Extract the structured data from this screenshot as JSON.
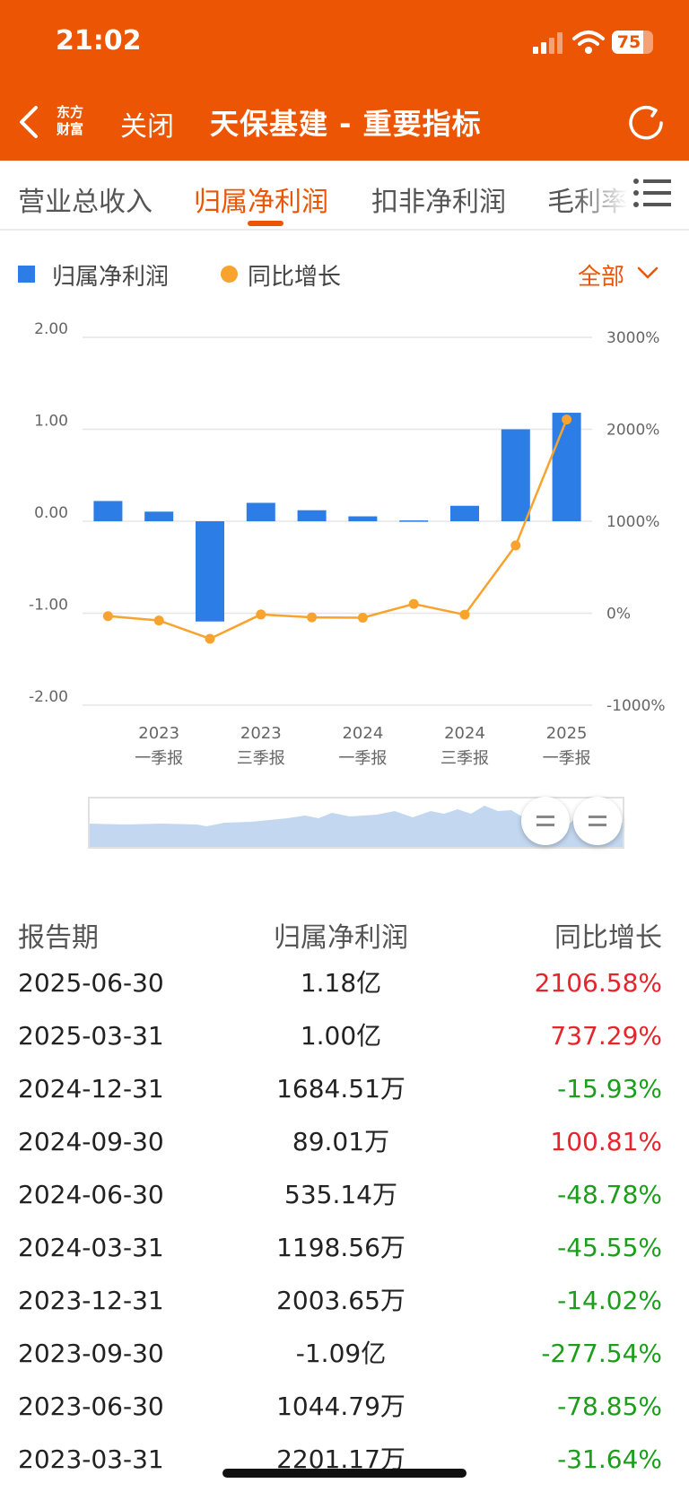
{
  "status_bar": {
    "time": "21:02",
    "battery": "75",
    "battery_level": 0.75
  },
  "header": {
    "logo_line1": "东方",
    "logo_line2": "财富",
    "close_label": "关闭",
    "title": "天保基建 - 重要指标",
    "back_icon": "back-chevron-icon",
    "refresh_icon": "refresh-icon"
  },
  "tabs": [
    {
      "label": "营业总收入",
      "active": false
    },
    {
      "label": "归属净利润",
      "active": true
    },
    {
      "label": "扣非净利润",
      "active": false
    },
    {
      "label": "毛利率",
      "active": false
    }
  ],
  "legend": {
    "bar_label": "归属净利润",
    "line_label": "同比增长",
    "filter_label": "全部"
  },
  "colors": {
    "accent": "#ec5504",
    "bar": "#2c7de5",
    "line": "#f8a32d",
    "up": "#e5242c",
    "down": "#1c9e1c"
  },
  "chart_data": {
    "type": "bar+line",
    "categories": [
      "2023-03-31",
      "2023-06-30",
      "2023-09-30",
      "2023-12-31",
      "2024-03-31",
      "2024-06-30",
      "2024-09-30",
      "2024-12-31",
      "2025-03-31",
      "2025-06-30"
    ],
    "x_tick_labels": [
      {
        "year": "2023",
        "period": "一季报"
      },
      {
        "year": "2023",
        "period": "三季报"
      },
      {
        "year": "2024",
        "period": "一季报"
      },
      {
        "year": "2024",
        "period": "三季报"
      },
      {
        "year": "2025",
        "period": "一季报"
      }
    ],
    "left_axis": {
      "ticks": [
        "2.00",
        "1.00",
        "0.00",
        "-1.00",
        "-2.00"
      ],
      "ylim": [
        -2,
        2
      ]
    },
    "right_axis": {
      "ticks": [
        "3000%",
        "2000%",
        "1000%",
        "0%",
        "-1000%"
      ],
      "ylim": [
        -1000,
        3000
      ]
    },
    "series": [
      {
        "name": "归属净利润",
        "type": "bar",
        "axis": "left",
        "values": [
          0.220117,
          0.104479,
          -1.09,
          0.200365,
          0.119856,
          0.053514,
          0.008901,
          0.168451,
          1.0,
          1.18
        ]
      },
      {
        "name": "同比增长",
        "type": "line",
        "axis": "right",
        "values": [
          -31.64,
          -78.85,
          -277.54,
          -14.02,
          -45.55,
          -48.78,
          100.81,
          -15.93,
          737.29,
          2106.58
        ]
      }
    ],
    "grid": true
  },
  "range_slider": {
    "start": 0.8,
    "end": 1.0
  },
  "table": {
    "headers": [
      "报告期",
      "归属净利润",
      "同比增长"
    ],
    "rows": [
      {
        "date": "2025-06-30",
        "profit": "1.18亿",
        "growth": "2106.58%",
        "trend": "up"
      },
      {
        "date": "2025-03-31",
        "profit": "1.00亿",
        "growth": "737.29%",
        "trend": "up"
      },
      {
        "date": "2024-12-31",
        "profit": "1684.51万",
        "growth": "-15.93%",
        "trend": "down"
      },
      {
        "date": "2024-09-30",
        "profit": "89.01万",
        "growth": "100.81%",
        "trend": "up"
      },
      {
        "date": "2024-06-30",
        "profit": "535.14万",
        "growth": "-48.78%",
        "trend": "down"
      },
      {
        "date": "2024-03-31",
        "profit": "1198.56万",
        "growth": "-45.55%",
        "trend": "down"
      },
      {
        "date": "2023-12-31",
        "profit": "2003.65万",
        "growth": "-14.02%",
        "trend": "down"
      },
      {
        "date": "2023-09-30",
        "profit": "-1.09亿",
        "growth": "-277.54%",
        "trend": "down"
      },
      {
        "date": "2023-06-30",
        "profit": "1044.79万",
        "growth": "-78.85%",
        "trend": "down"
      },
      {
        "date": "2023-03-31",
        "profit": "2201.17万",
        "growth": "-31.64%",
        "trend": "down"
      }
    ]
  }
}
